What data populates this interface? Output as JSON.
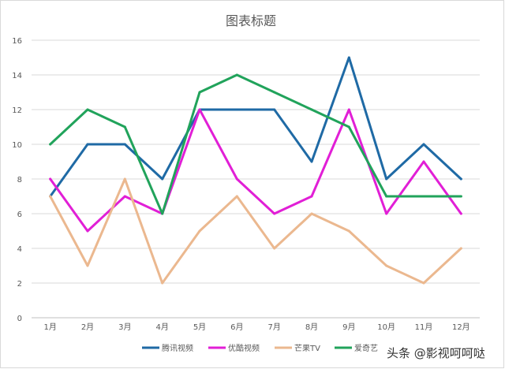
{
  "chart_data": {
    "type": "line",
    "title": "图表标题",
    "categories": [
      "1月",
      "2月",
      "3月",
      "4月",
      "5月",
      "6月",
      "7月",
      "8月",
      "9月",
      "10月",
      "11月",
      "12月"
    ],
    "ylim": [
      0,
      16
    ],
    "yticks": [
      "0",
      "2",
      "4",
      "6",
      "8",
      "10",
      "12",
      "14",
      "16"
    ],
    "grid": true,
    "legend_position": "bottom",
    "series": [
      {
        "name": "腾讯视频",
        "color": "#1f6aa5",
        "values": [
          7,
          10,
          10,
          8,
          12,
          12,
          12,
          9,
          15,
          8,
          10,
          8
        ]
      },
      {
        "name": "优酷视频",
        "color": "#e11fd6",
        "values": [
          8,
          5,
          7,
          6,
          12,
          8,
          6,
          7,
          12,
          6,
          9,
          6
        ]
      },
      {
        "name": "芒果TV",
        "color": "#ebb88f",
        "values": [
          7,
          3,
          8,
          2,
          5,
          7,
          4,
          6,
          5,
          3,
          2,
          4
        ]
      },
      {
        "name": "爱奇艺",
        "color": "#21a35b",
        "values": [
          10,
          12,
          11,
          6,
          13,
          14,
          13,
          12,
          11,
          7,
          7,
          7
        ]
      }
    ]
  },
  "watermark": {
    "text": "头条 @影视呵呵哒"
  }
}
